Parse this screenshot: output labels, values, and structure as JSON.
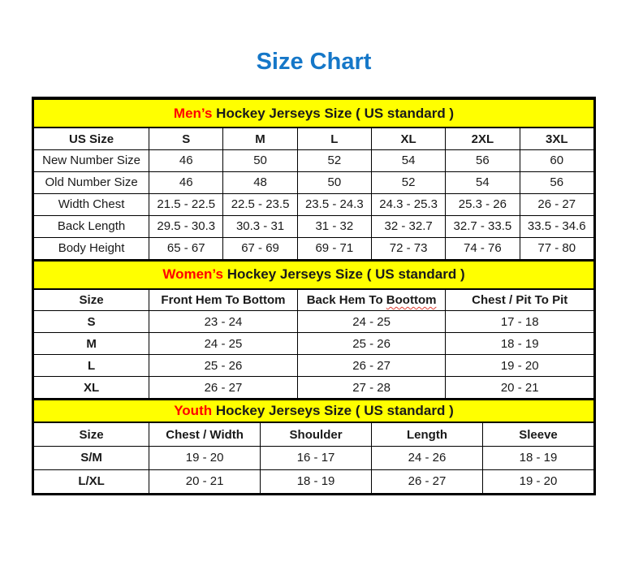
{
  "title": "Size Chart",
  "colors": {
    "title_blue": "#1577C8",
    "band_yellow": "#FFFF00",
    "highlight_red": "#FF0000",
    "border_black": "#000000"
  },
  "tables": [
    {
      "id": "mens",
      "band": {
        "highlight": "Men’s",
        "rest": " Hockey Jerseys Size ( US standard )"
      },
      "columns": [
        "US Size",
        "S",
        "M",
        "L",
        "XL",
        "2XL",
        "3XL"
      ],
      "col_widths": [
        "20.6%",
        "13.23%",
        "13.23%",
        "13.23%",
        "13.23%",
        "13.23%",
        "13.25%"
      ],
      "bold_first_col": false,
      "rows": [
        [
          "New Number Size",
          "46",
          "50",
          "52",
          "54",
          "56",
          "60"
        ],
        [
          "Old Number Size",
          "46",
          "48",
          "50",
          "52",
          "54",
          "56"
        ],
        [
          "Width Chest",
          "21.5 - 22.5",
          "22.5 - 23.5",
          "23.5 - 24.3",
          "24.3 - 25.3",
          "25.3 - 26",
          "26 - 27"
        ],
        [
          "Back Length",
          "29.5 - 30.3",
          "30.3 - 31",
          "31 - 32",
          "32 - 32.7",
          "32.7 - 33.5",
          "33.5 - 34.6"
        ],
        [
          "Body Height",
          "65 - 67",
          "67 - 69",
          "69 - 71",
          "72 - 73",
          "74 - 76",
          "77 - 80"
        ]
      ]
    },
    {
      "id": "womens",
      "band": {
        "highlight": "Women’s",
        "rest": " Hockey Jerseys Size ( US standard )"
      },
      "columns": [
        "Size",
        "Front Hem To Bottom",
        {
          "pre": "Back Hem To ",
          "squiggle": "Boottom"
        },
        "Chest / Pit To Pit"
      ],
      "col_widths": [
        "20.6%",
        "26.47%",
        "26.47%",
        "26.46%"
      ],
      "bold_first_col": true,
      "rows": [
        [
          "S",
          "23 - 24",
          "24 - 25",
          "17 - 18"
        ],
        [
          "M",
          "24 - 25",
          "25 - 26",
          "18 - 19"
        ],
        [
          "L",
          "25 - 26",
          "26 - 27",
          "19 - 20"
        ],
        [
          "XL",
          "26 - 27",
          "27 - 28",
          "20 - 21"
        ]
      ]
    },
    {
      "id": "youth",
      "band": {
        "highlight": "Youth",
        "rest": " Hockey Jerseys Size ( US standard )"
      },
      "columns": [
        "Size",
        "Chest / Width",
        "Shoulder",
        "Length",
        "Sleeve"
      ],
      "col_widths": [
        "20.6%",
        "19.85%",
        "19.85%",
        "19.85%",
        "19.85%"
      ],
      "bold_first_col": true,
      "rows": [
        [
          "S/M",
          "19 - 20",
          "16 - 17",
          "24 - 26",
          "18 - 19"
        ],
        [
          "L/XL",
          "20 - 21",
          "18 - 19",
          "26 - 27",
          "19 - 20"
        ]
      ]
    }
  ]
}
